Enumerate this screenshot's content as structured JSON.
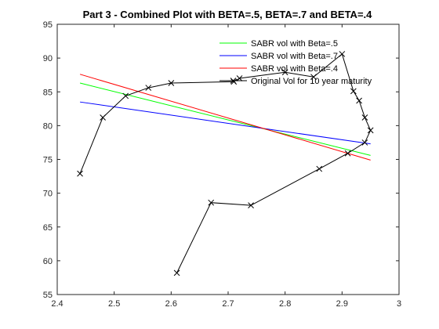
{
  "chart_data": {
    "type": "line",
    "title": "Part 3 - Combined Plot with BETA=.5, BETA=.7 and BETA=.4",
    "xlabel": "",
    "ylabel": "",
    "xlim": [
      2.4,
      3.0
    ],
    "ylim": [
      55,
      95
    ],
    "xticks": [
      2.4,
      2.5,
      2.6,
      2.7,
      2.8,
      2.9,
      3.0
    ],
    "xtick_labels": [
      "2.4",
      "2.5",
      "2.6",
      "2.7",
      "2.8",
      "2.9",
      "3"
    ],
    "yticks": [
      55,
      60,
      65,
      70,
      75,
      80,
      85,
      90,
      95
    ],
    "ytick_labels": [
      "55",
      "60",
      "65",
      "70",
      "75",
      "80",
      "85",
      "90",
      "95"
    ],
    "grid": false,
    "legend_position": "top-right",
    "series": [
      {
        "name": "SABR vol with Beta=.5",
        "color": "#00ff00",
        "marker": "none",
        "x": [
          2.44,
          2.95
        ],
        "y": [
          86.3,
          75.6
        ]
      },
      {
        "name": "SABR vol with Beta=.7",
        "color": "#0000ff",
        "marker": "none",
        "x": [
          2.44,
          2.95
        ],
        "y": [
          83.5,
          77.3
        ]
      },
      {
        "name": "SABR vol with Beta=.4",
        "color": "#ff0000",
        "marker": "none",
        "x": [
          2.44,
          2.95
        ],
        "y": [
          87.6,
          74.9
        ]
      },
      {
        "name": "Original Vol for 10 year maturity",
        "color": "#000000",
        "marker": "x",
        "x": [
          2.61,
          2.67,
          2.74,
          2.86,
          2.91,
          2.94,
          2.95,
          2.94,
          2.93,
          2.92,
          2.9,
          2.85,
          2.8,
          2.72,
          2.71,
          2.6,
          2.56,
          2.52,
          2.48,
          2.44
        ],
        "y": [
          58.2,
          68.6,
          68.2,
          73.6,
          75.9,
          77.5,
          79.3,
          81.2,
          83.7,
          85.1,
          90.6,
          87.2,
          87.9,
          87.0,
          86.5,
          86.3,
          85.6,
          84.4,
          81.2,
          72.9
        ]
      }
    ]
  }
}
